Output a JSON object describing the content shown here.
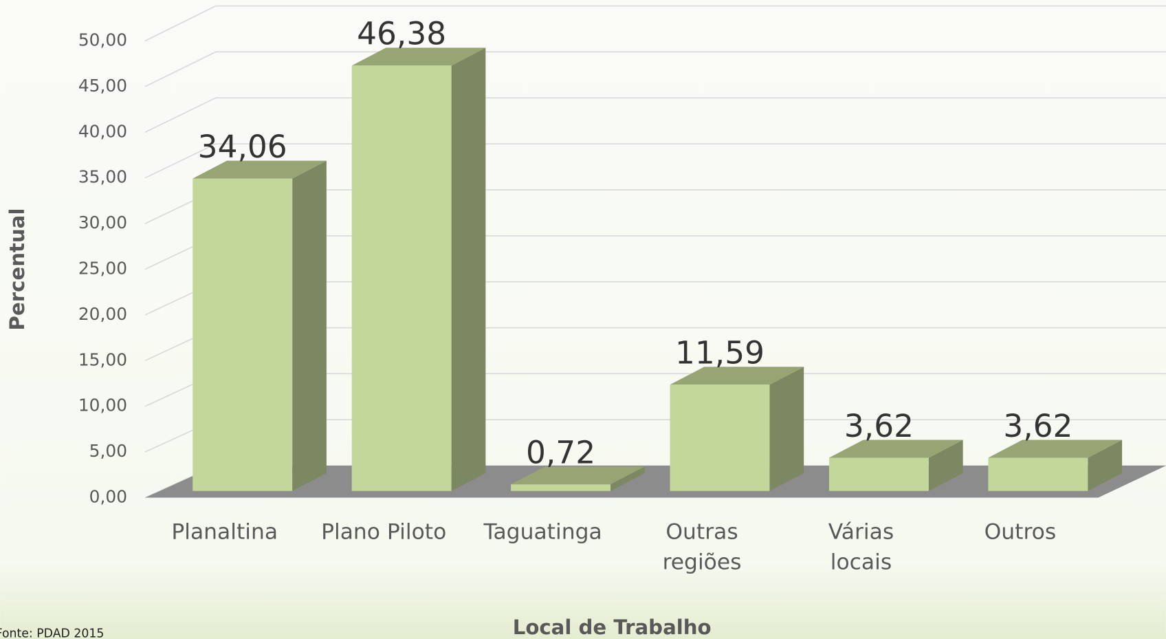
{
  "chart_data": {
    "type": "bar3d",
    "y_label": "Percentual",
    "x_label": "Local de Trabalho",
    "source": "Fonte: PDAD 2015",
    "categories": [
      "Planaltina",
      "Plano Piloto",
      "Taguatinga",
      "Outras regiões",
      "Várias locais",
      "Outros"
    ],
    "values": [
      34.06,
      46.38,
      0.72,
      11.59,
      3.62,
      3.62
    ],
    "value_labels": [
      "34,06",
      "46,38",
      "0,72",
      "11,59",
      "3,62",
      "3,62"
    ],
    "color": "#c4d79b",
    "ylim": [
      0,
      50
    ],
    "yticks": [
      {
        "value": 0,
        "label": "0,00"
      },
      {
        "value": 5,
        "label": "5,00"
      },
      {
        "value": 10,
        "label": "10,00"
      },
      {
        "value": 15,
        "label": "15,00"
      },
      {
        "value": 20,
        "label": "20,00"
      },
      {
        "value": 25,
        "label": "25,00"
      },
      {
        "value": 30,
        "label": "30,00"
      },
      {
        "value": 35,
        "label": "35,00"
      },
      {
        "value": 40,
        "label": "40,00"
      },
      {
        "value": 45,
        "label": "45,00"
      },
      {
        "value": 50,
        "label": "50,00"
      }
    ],
    "grid": true
  }
}
